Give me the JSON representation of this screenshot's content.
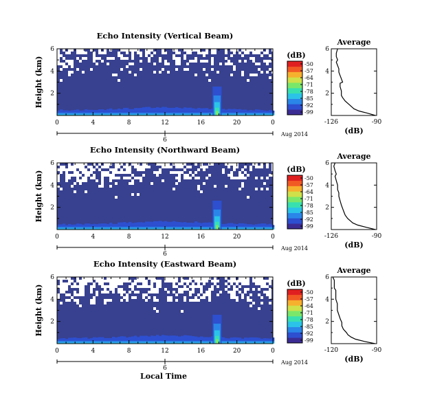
{
  "chart_data": [
    {
      "type": "heatmap",
      "title": "Echo Intensity (Vertical Beam)",
      "ylabel": "Height (km)",
      "x_ticks": [
        "0",
        "4",
        "8",
        "12",
        "16",
        "20",
        "0"
      ],
      "y_ticks": [
        "2",
        "4",
        "6"
      ],
      "date_tick": "6",
      "date_label": "Aug 2014",
      "xlim": [
        0,
        24
      ],
      "ylim": [
        0,
        6
      ],
      "grid": false,
      "colorbar": {
        "unit": "(dB)",
        "ticks": [
          "-50",
          "-57",
          "-64",
          "-71",
          "-78",
          "-85",
          "-92",
          "-99"
        ],
        "range": [
          -99,
          -50
        ]
      },
      "profile": {
        "title": "Average",
        "xlabel": "(dB)",
        "x_ticks": [
          "-126",
          "-90"
        ],
        "y_ticks": [
          "2",
          "4",
          "6"
        ],
        "xlim": [
          -126,
          -90
        ],
        "ylim": [
          0,
          6
        ]
      }
    },
    {
      "type": "heatmap",
      "title": "Echo Intensity (Northward Beam)",
      "ylabel": "Height (km)",
      "x_ticks": [
        "0",
        "4",
        "8",
        "12",
        "16",
        "20",
        "0"
      ],
      "y_ticks": [
        "2",
        "4",
        "6"
      ],
      "date_tick": "6",
      "date_label": "Aug 2014",
      "xlim": [
        0,
        24
      ],
      "ylim": [
        0,
        6
      ],
      "grid": false,
      "colorbar": {
        "unit": "(dB)",
        "ticks": [
          "-50",
          "-57",
          "-64",
          "-71",
          "-78",
          "-85",
          "-92",
          "-99"
        ],
        "range": [
          -99,
          -50
        ]
      },
      "profile": {
        "title": "Average",
        "xlabel": "(dB)",
        "x_ticks": [
          "-126",
          "-90"
        ],
        "y_ticks": [
          "2",
          "4",
          "6"
        ],
        "xlim": [
          -126,
          -90
        ],
        "ylim": [
          0,
          6
        ]
      }
    },
    {
      "type": "heatmap",
      "title": "Echo Intensity (Eastward Beam)",
      "ylabel": "Height (km)",
      "xlabel": "Local Time",
      "x_ticks": [
        "0",
        "4",
        "8",
        "12",
        "16",
        "20",
        "0"
      ],
      "y_ticks": [
        "2",
        "4",
        "6"
      ],
      "date_tick": "6",
      "date_label": "Aug 2014",
      "xlim": [
        0,
        24
      ],
      "ylim": [
        0,
        6
      ],
      "grid": false,
      "colorbar": {
        "unit": "(dB)",
        "ticks": [
          "-50",
          "-57",
          "-64",
          "-71",
          "-78",
          "-85",
          "-92",
          "-99"
        ],
        "range": [
          -99,
          -50
        ]
      },
      "profile": {
        "title": "Average",
        "xlabel": "(dB)",
        "x_ticks": [
          "-120",
          "-90"
        ],
        "y_ticks": [
          "2",
          "4",
          "6"
        ],
        "xlim": [
          -120,
          -90
        ],
        "ylim": [
          0,
          6
        ]
      }
    }
  ],
  "profile_series": [
    [
      [
        0.0,
        -91
      ],
      [
        0.2,
        -97
      ],
      [
        0.4,
        -104
      ],
      [
        0.6,
        -108
      ],
      [
        0.8,
        -110
      ],
      [
        1.0,
        -112
      ],
      [
        1.3,
        -115
      ],
      [
        1.6,
        -117
      ],
      [
        1.8,
        -118
      ],
      [
        2.2,
        -118
      ],
      [
        2.6,
        -119
      ],
      [
        2.9,
        -119
      ],
      [
        3.0,
        -117
      ],
      [
        3.3,
        -118
      ],
      [
        3.6,
        -119
      ],
      [
        3.9,
        -120
      ],
      [
        4.2,
        -120
      ],
      [
        4.5,
        -121
      ],
      [
        4.8,
        -122
      ],
      [
        5.0,
        -121
      ],
      [
        5.3,
        -122
      ],
      [
        5.6,
        -122
      ],
      [
        6.0,
        -121
      ]
    ],
    [
      [
        0.0,
        -91
      ],
      [
        0.2,
        -98
      ],
      [
        0.4,
        -105
      ],
      [
        0.6,
        -109
      ],
      [
        0.8,
        -111
      ],
      [
        1.0,
        -113
      ],
      [
        1.3,
        -115
      ],
      [
        1.6,
        -116
      ],
      [
        1.9,
        -117
      ],
      [
        2.2,
        -118
      ],
      [
        2.6,
        -119
      ],
      [
        3.0,
        -120
      ],
      [
        3.3,
        -120
      ],
      [
        3.6,
        -121
      ],
      [
        4.0,
        -121
      ],
      [
        4.4,
        -122
      ],
      [
        4.8,
        -123
      ],
      [
        5.0,
        -122
      ],
      [
        5.3,
        -123
      ],
      [
        5.7,
        -124
      ],
      [
        6.0,
        -123
      ]
    ],
    [
      [
        0.0,
        -91
      ],
      [
        0.2,
        -98
      ],
      [
        0.4,
        -104
      ],
      [
        0.6,
        -107
      ],
      [
        0.8,
        -109
      ],
      [
        1.0,
        -110
      ],
      [
        1.3,
        -112
      ],
      [
        1.6,
        -113
      ],
      [
        1.9,
        -113
      ],
      [
        2.2,
        -114
      ],
      [
        2.6,
        -115
      ],
      [
        3.0,
        -116
      ],
      [
        3.3,
        -116
      ],
      [
        3.6,
        -116
      ],
      [
        4.0,
        -117
      ],
      [
        4.4,
        -117
      ],
      [
        4.8,
        -117
      ],
      [
        5.0,
        -118
      ],
      [
        5.4,
        -118
      ],
      [
        5.7,
        -118
      ],
      [
        6.0,
        -119
      ]
    ]
  ],
  "colors": {
    "background_fill": "#38418f",
    "colormap": [
      "#3b2c94",
      "#2d4fd0",
      "#2a86e8",
      "#2bc3e8",
      "#38e0b0",
      "#7ae76a",
      "#cfe04a",
      "#f7b02e",
      "#f25a24",
      "#e02020"
    ]
  }
}
